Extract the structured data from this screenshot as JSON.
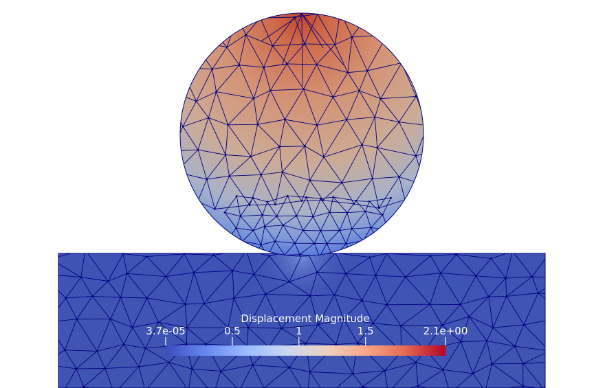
{
  "scene": {
    "field": "Displacement Magnitude",
    "mesh": "triangular",
    "edge_color": "#00007f",
    "background": "#ffffff"
  },
  "colorbar": {
    "title": "Displacement Magnitude",
    "colormap": "cool to warm",
    "range": [
      3.7e-05,
      2.1
    ],
    "ticks": [
      {
        "value": 3.7e-05,
        "label": "3.7e-05"
      },
      {
        "value": 0.5,
        "label": "0.5"
      },
      {
        "value": 1,
        "label": "1"
      },
      {
        "value": 1.5,
        "label": "1.5"
      },
      {
        "value": 2.1,
        "label": "2.1e+00"
      }
    ],
    "colors": [
      "#3b4cc0",
      "#6788ee",
      "#9abbff",
      "#c9d7f0",
      "#edd1c2",
      "#f7a889",
      "#e26952",
      "#b40426"
    ]
  }
}
